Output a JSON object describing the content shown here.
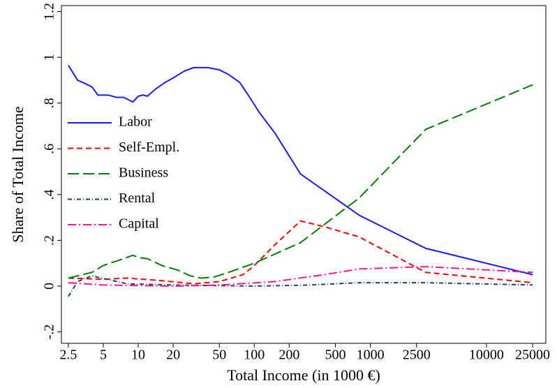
{
  "chart_data": {
    "type": "line",
    "x_label": "Total Income (in 1000 €)",
    "y_label": "Share of Total Income",
    "xscale": "log",
    "xlim": [
      2.18,
      32500
    ],
    "ylim": [
      -0.25,
      1.226
    ],
    "xticks": [
      {
        "value": 2.5,
        "label": "2.5"
      },
      5,
      10,
      20,
      50,
      100,
      200,
      500,
      1000,
      2500,
      10000,
      25000
    ],
    "yticks": [
      {
        "value": -0.2,
        "label": "-.2"
      },
      0,
      {
        "value": 0.2,
        "label": ".2"
      },
      {
        "value": 0.4,
        "label": ".4"
      },
      {
        "value": 0.6,
        "label": ".6"
      },
      {
        "value": 0.8,
        "label": ".8"
      },
      1,
      1.2
    ],
    "grid": false,
    "legend": "left",
    "series": [
      {
        "name": "Labor",
        "color": "#1a1aff",
        "dash": "solid",
        "x": [
          2.5,
          3,
          3.5,
          4,
          4.5,
          5.5,
          6.5,
          7.5,
          9,
          10,
          11,
          12,
          14,
          17,
          20,
          25,
          30,
          40,
          50,
          60,
          75,
          90,
          110,
          150,
          250,
          800,
          3000,
          25000
        ],
        "values": [
          0.965,
          0.9,
          0.885,
          0.87,
          0.835,
          0.835,
          0.825,
          0.825,
          0.805,
          0.83,
          0.835,
          0.83,
          0.86,
          0.89,
          0.91,
          0.94,
          0.955,
          0.955,
          0.945,
          0.925,
          0.89,
          0.83,
          0.76,
          0.67,
          0.49,
          0.31,
          0.165,
          0.05
        ]
      },
      {
        "name": "Self-Empl.",
        "color": "#ff0000",
        "dash": "dash",
        "x": [
          2.5,
          5,
          8,
          15,
          30,
          50,
          80,
          100,
          150,
          250,
          400,
          800,
          3000,
          25000
        ],
        "values": [
          0.035,
          0.03,
          0.035,
          0.025,
          0.01,
          0.02,
          0.05,
          0.09,
          0.18,
          0.285,
          0.26,
          0.215,
          0.06,
          0.015
        ]
      },
      {
        "name": "Business",
        "color": "#008000",
        "dash": "longdash",
        "x": [
          2.5,
          4,
          5,
          7,
          9,
          10,
          12,
          16,
          22,
          28,
          35,
          45,
          60,
          100,
          250,
          800,
          3000,
          25000
        ],
        "values": [
          0.035,
          0.06,
          0.09,
          0.115,
          0.135,
          0.125,
          0.12,
          0.09,
          0.07,
          0.045,
          0.035,
          0.04,
          0.06,
          0.1,
          0.19,
          0.385,
          0.685,
          0.88
        ]
      },
      {
        "name": "Rental",
        "color": "#1f3f6f",
        "dash": "dashdot",
        "x": [
          2.5,
          3,
          4,
          8,
          20,
          100,
          300,
          800,
          3000,
          25000
        ],
        "values": [
          -0.045,
          0.02,
          0.045,
          0.01,
          0.005,
          0,
          0.005,
          0.015,
          0.015,
          0.005
        ]
      },
      {
        "name": "Capital",
        "color": "#ff1493",
        "dash": "longdashdot",
        "x": [
          2.5,
          5,
          20,
          50,
          150,
          400,
          800,
          3000,
          25000
        ],
        "values": [
          0.015,
          0.005,
          0,
          0.005,
          0.02,
          0.05,
          0.075,
          0.085,
          0.06
        ]
      }
    ]
  }
}
